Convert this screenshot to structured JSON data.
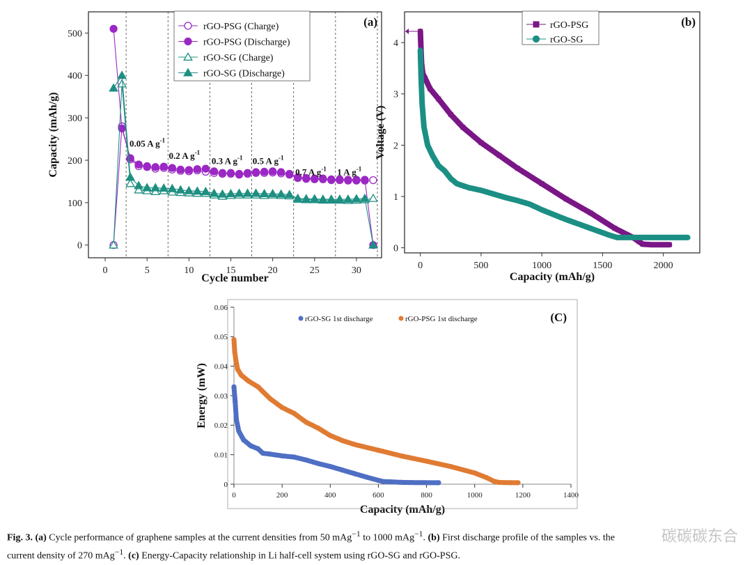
{
  "chart_data": [
    {
      "type": "scatter",
      "panel": "(a)",
      "xlabel": "Cycle number",
      "ylabel": "Capacity (mAh/g)",
      "xlim": [
        -2,
        33
      ],
      "ylim": [
        -30,
        550
      ],
      "xticks": [
        "0",
        "5",
        "10",
        "15",
        "20",
        "25",
        "30"
      ],
      "yticks": [
        "0",
        "100",
        "200",
        "300",
        "400",
        "500"
      ],
      "grid": false,
      "legend_position": "top-right",
      "rate_dividers": [
        2.5,
        7.5,
        12.5,
        17.5,
        22.5,
        27.5,
        32.5
      ],
      "rate_labels": [
        {
          "text": "0.05 A g",
          "sup": "-1",
          "x": 2.9,
          "y": 232
        },
        {
          "text": "0.2 A g",
          "sup": "-1",
          "x": 7.6,
          "y": 203
        },
        {
          "text": "0.3 A g",
          "sup": "-1",
          "x": 12.7,
          "y": 191
        },
        {
          "text": "0.5 A g",
          "sup": "-1",
          "x": 17.6,
          "y": 191
        },
        {
          "text": "0.7 A g",
          "sup": "-1",
          "x": 22.7,
          "y": 165
        },
        {
          "text": "1 A g",
          "sup": "-1",
          "x": 27.7,
          "y": 165
        }
      ],
      "series": [
        {
          "name": "rGO-PSG (Charge)",
          "color": "#9b27c4",
          "marker": "circle-open",
          "x": [
            1,
            2,
            3,
            4,
            5,
            6,
            7,
            8,
            9,
            10,
            11,
            12,
            13,
            14,
            15,
            16,
            17,
            18,
            19,
            20,
            21,
            22,
            23,
            24,
            25,
            26,
            27,
            28,
            29,
            30,
            31,
            32
          ],
          "y": [
            0,
            280,
            202,
            186,
            184,
            180,
            182,
            178,
            175,
            174,
            176,
            173,
            170,
            168,
            168,
            166,
            168,
            170,
            170,
            171,
            169,
            166,
            158,
            156,
            155,
            155,
            153,
            153,
            152,
            152,
            152,
            153
          ]
        },
        {
          "name": "rGO-PSG (Discharge)",
          "color": "#9b27c4",
          "marker": "circle-filled",
          "x": [
            1,
            2,
            3,
            4,
            5,
            6,
            7,
            8,
            9,
            10,
            11,
            12,
            13,
            14,
            15,
            16,
            17,
            18,
            19,
            20,
            21,
            22,
            23,
            24,
            25,
            26,
            27,
            28,
            29,
            30,
            31,
            32
          ],
          "y": [
            510,
            275,
            205,
            190,
            186,
            184,
            185,
            182,
            178,
            177,
            179,
            180,
            174,
            170,
            170,
            168,
            170,
            172,
            173,
            174,
            172,
            168,
            160,
            158,
            157,
            157,
            155,
            155,
            154,
            154,
            154,
            0
          ]
        },
        {
          "name": "rGO-SG (Charge)",
          "color": "#1f8f82",
          "marker": "triangle-open",
          "x": [
            1,
            2,
            3,
            4,
            5,
            6,
            7,
            8,
            9,
            10,
            11,
            12,
            13,
            14,
            15,
            16,
            17,
            18,
            19,
            20,
            21,
            22,
            23,
            24,
            25,
            26,
            27,
            28,
            29,
            30,
            31,
            32
          ],
          "y": [
            0,
            380,
            145,
            130,
            128,
            126,
            128,
            125,
            124,
            123,
            122,
            122,
            118,
            115,
            117,
            118,
            118,
            118,
            117,
            118,
            117,
            116,
            108,
            107,
            107,
            106,
            106,
            106,
            105,
            106,
            107,
            110
          ]
        },
        {
          "name": "rGO-SG (Discharge)",
          "color": "#1f8f82",
          "marker": "triangle-filled",
          "x": [
            1,
            2,
            3,
            4,
            5,
            6,
            7,
            8,
            9,
            10,
            11,
            12,
            13,
            14,
            15,
            16,
            17,
            18,
            19,
            20,
            21,
            22,
            23,
            24,
            25,
            26,
            27,
            28,
            29,
            30,
            31,
            32
          ],
          "y": [
            370,
            400,
            160,
            140,
            135,
            135,
            134,
            133,
            130,
            128,
            127,
            126,
            122,
            120,
            121,
            122,
            122,
            122,
            121,
            121,
            120,
            119,
            110,
            109,
            109,
            108,
            108,
            108,
            108,
            109,
            110,
            0
          ]
        }
      ]
    },
    {
      "type": "line",
      "panel": "(b)",
      "xlabel": "Capacity (mAh/g)",
      "ylabel": "Voltage (V)",
      "xlim": [
        -130,
        2300
      ],
      "ylim": [
        -0.1,
        4.6
      ],
      "xticks": [
        "0",
        "500",
        "1000",
        "1500",
        "2000"
      ],
      "yticks": [
        "0",
        "1",
        "2",
        "3",
        "4"
      ],
      "grid": false,
      "legend_position": "top-left",
      "series": [
        {
          "name": "rGO-PSG",
          "color": "#7a1686",
          "marker": "square",
          "x": [
            0,
            5,
            10,
            20,
            40,
            80,
            150,
            250,
            350,
            500,
            650,
            800,
            1000,
            1200,
            1400,
            1600,
            1750,
            1800,
            1830,
            1900,
            2000,
            2050
          ],
          "y": [
            4.22,
            3.9,
            3.6,
            3.4,
            3.3,
            3.1,
            2.9,
            2.6,
            2.35,
            2.05,
            1.8,
            1.55,
            1.25,
            0.95,
            0.68,
            0.38,
            0.2,
            0.12,
            0.07,
            0.06,
            0.06,
            0.06
          ]
        },
        {
          "name": "rGO-SG",
          "color": "#1b8f84",
          "marker": "circle",
          "x": [
            0,
            3,
            8,
            15,
            30,
            60,
            100,
            150,
            200,
            250,
            300,
            400,
            500,
            600,
            700,
            800,
            900,
            1000,
            1200,
            1400,
            1550,
            1620,
            1700,
            1900,
            2100,
            2200
          ],
          "y": [
            3.85,
            3.6,
            3.2,
            2.8,
            2.35,
            2.0,
            1.8,
            1.6,
            1.5,
            1.35,
            1.25,
            1.17,
            1.12,
            1.05,
            0.98,
            0.92,
            0.85,
            0.74,
            0.55,
            0.38,
            0.25,
            0.2,
            0.2,
            0.2,
            0.2,
            0.2
          ]
        }
      ]
    },
    {
      "type": "scatter",
      "panel": "(C)",
      "xlabel": "Capacity (mAh/g)",
      "ylabel": "Energy (mW)",
      "xlim": [
        0,
        1400
      ],
      "ylim": [
        0,
        0.06
      ],
      "xticks": [
        "0",
        "200",
        "400",
        "600",
        "800",
        "1000",
        "1200",
        "1400"
      ],
      "yticks": [
        "0",
        "0.01",
        "0.02",
        "0.03",
        "0.04",
        "0.05",
        "0.06"
      ],
      "grid": false,
      "legend_position": "top-center",
      "series": [
        {
          "name": "rGO-SG 1st discharge",
          "color": "#4f6fc4",
          "marker": "circle",
          "x": [
            0,
            5,
            10,
            20,
            40,
            70,
            100,
            120,
            150,
            200,
            250,
            300,
            350,
            400,
            450,
            500,
            550,
            600,
            620,
            650,
            700,
            800,
            850
          ],
          "y": [
            0.033,
            0.028,
            0.022,
            0.018,
            0.015,
            0.013,
            0.012,
            0.0105,
            0.0102,
            0.0096,
            0.0092,
            0.0082,
            0.007,
            0.006,
            0.0048,
            0.0036,
            0.0024,
            0.0013,
            0.0009,
            0.0008,
            0.0006,
            0.0005,
            0.0005
          ]
        },
        {
          "name": "rGO-PSG 1st discharge",
          "color": "#e07b33",
          "marker": "circle",
          "x": [
            0,
            3,
            8,
            15,
            30,
            60,
            100,
            150,
            200,
            250,
            300,
            350,
            400,
            450,
            500,
            600,
            700,
            800,
            900,
            1000,
            1050,
            1080,
            1100,
            1150,
            1180
          ],
          "y": [
            0.049,
            0.045,
            0.042,
            0.039,
            0.037,
            0.035,
            0.033,
            0.029,
            0.026,
            0.024,
            0.021,
            0.019,
            0.0165,
            0.0148,
            0.0135,
            0.0115,
            0.0095,
            0.0078,
            0.006,
            0.0038,
            0.0022,
            0.001,
            0.0006,
            0.0005,
            0.0005
          ]
        }
      ]
    }
  ],
  "caption": {
    "fig_label": "Fig. 3.",
    "a_label": "(a)",
    "a_text": " Cycle performance of graphene samples at the current densities from 50 mAg",
    "a_sup1": "−1",
    "a_mid": " to 1000 mAg",
    "a_sup2": "−1",
    "a_end": ".",
    "b_label": "(b)",
    "b_text": " First discharge profile of the samples vs. the",
    "line2_start": "current density of 270 mAg",
    "line2_sup": "−1",
    "line2_mid": ". ",
    "c_label": "(c)",
    "c_text": " Energy-Capacity relationship in Li half-cell system using rGO-SG and rGO-PSG."
  },
  "watermark": "碳碳碳东合"
}
